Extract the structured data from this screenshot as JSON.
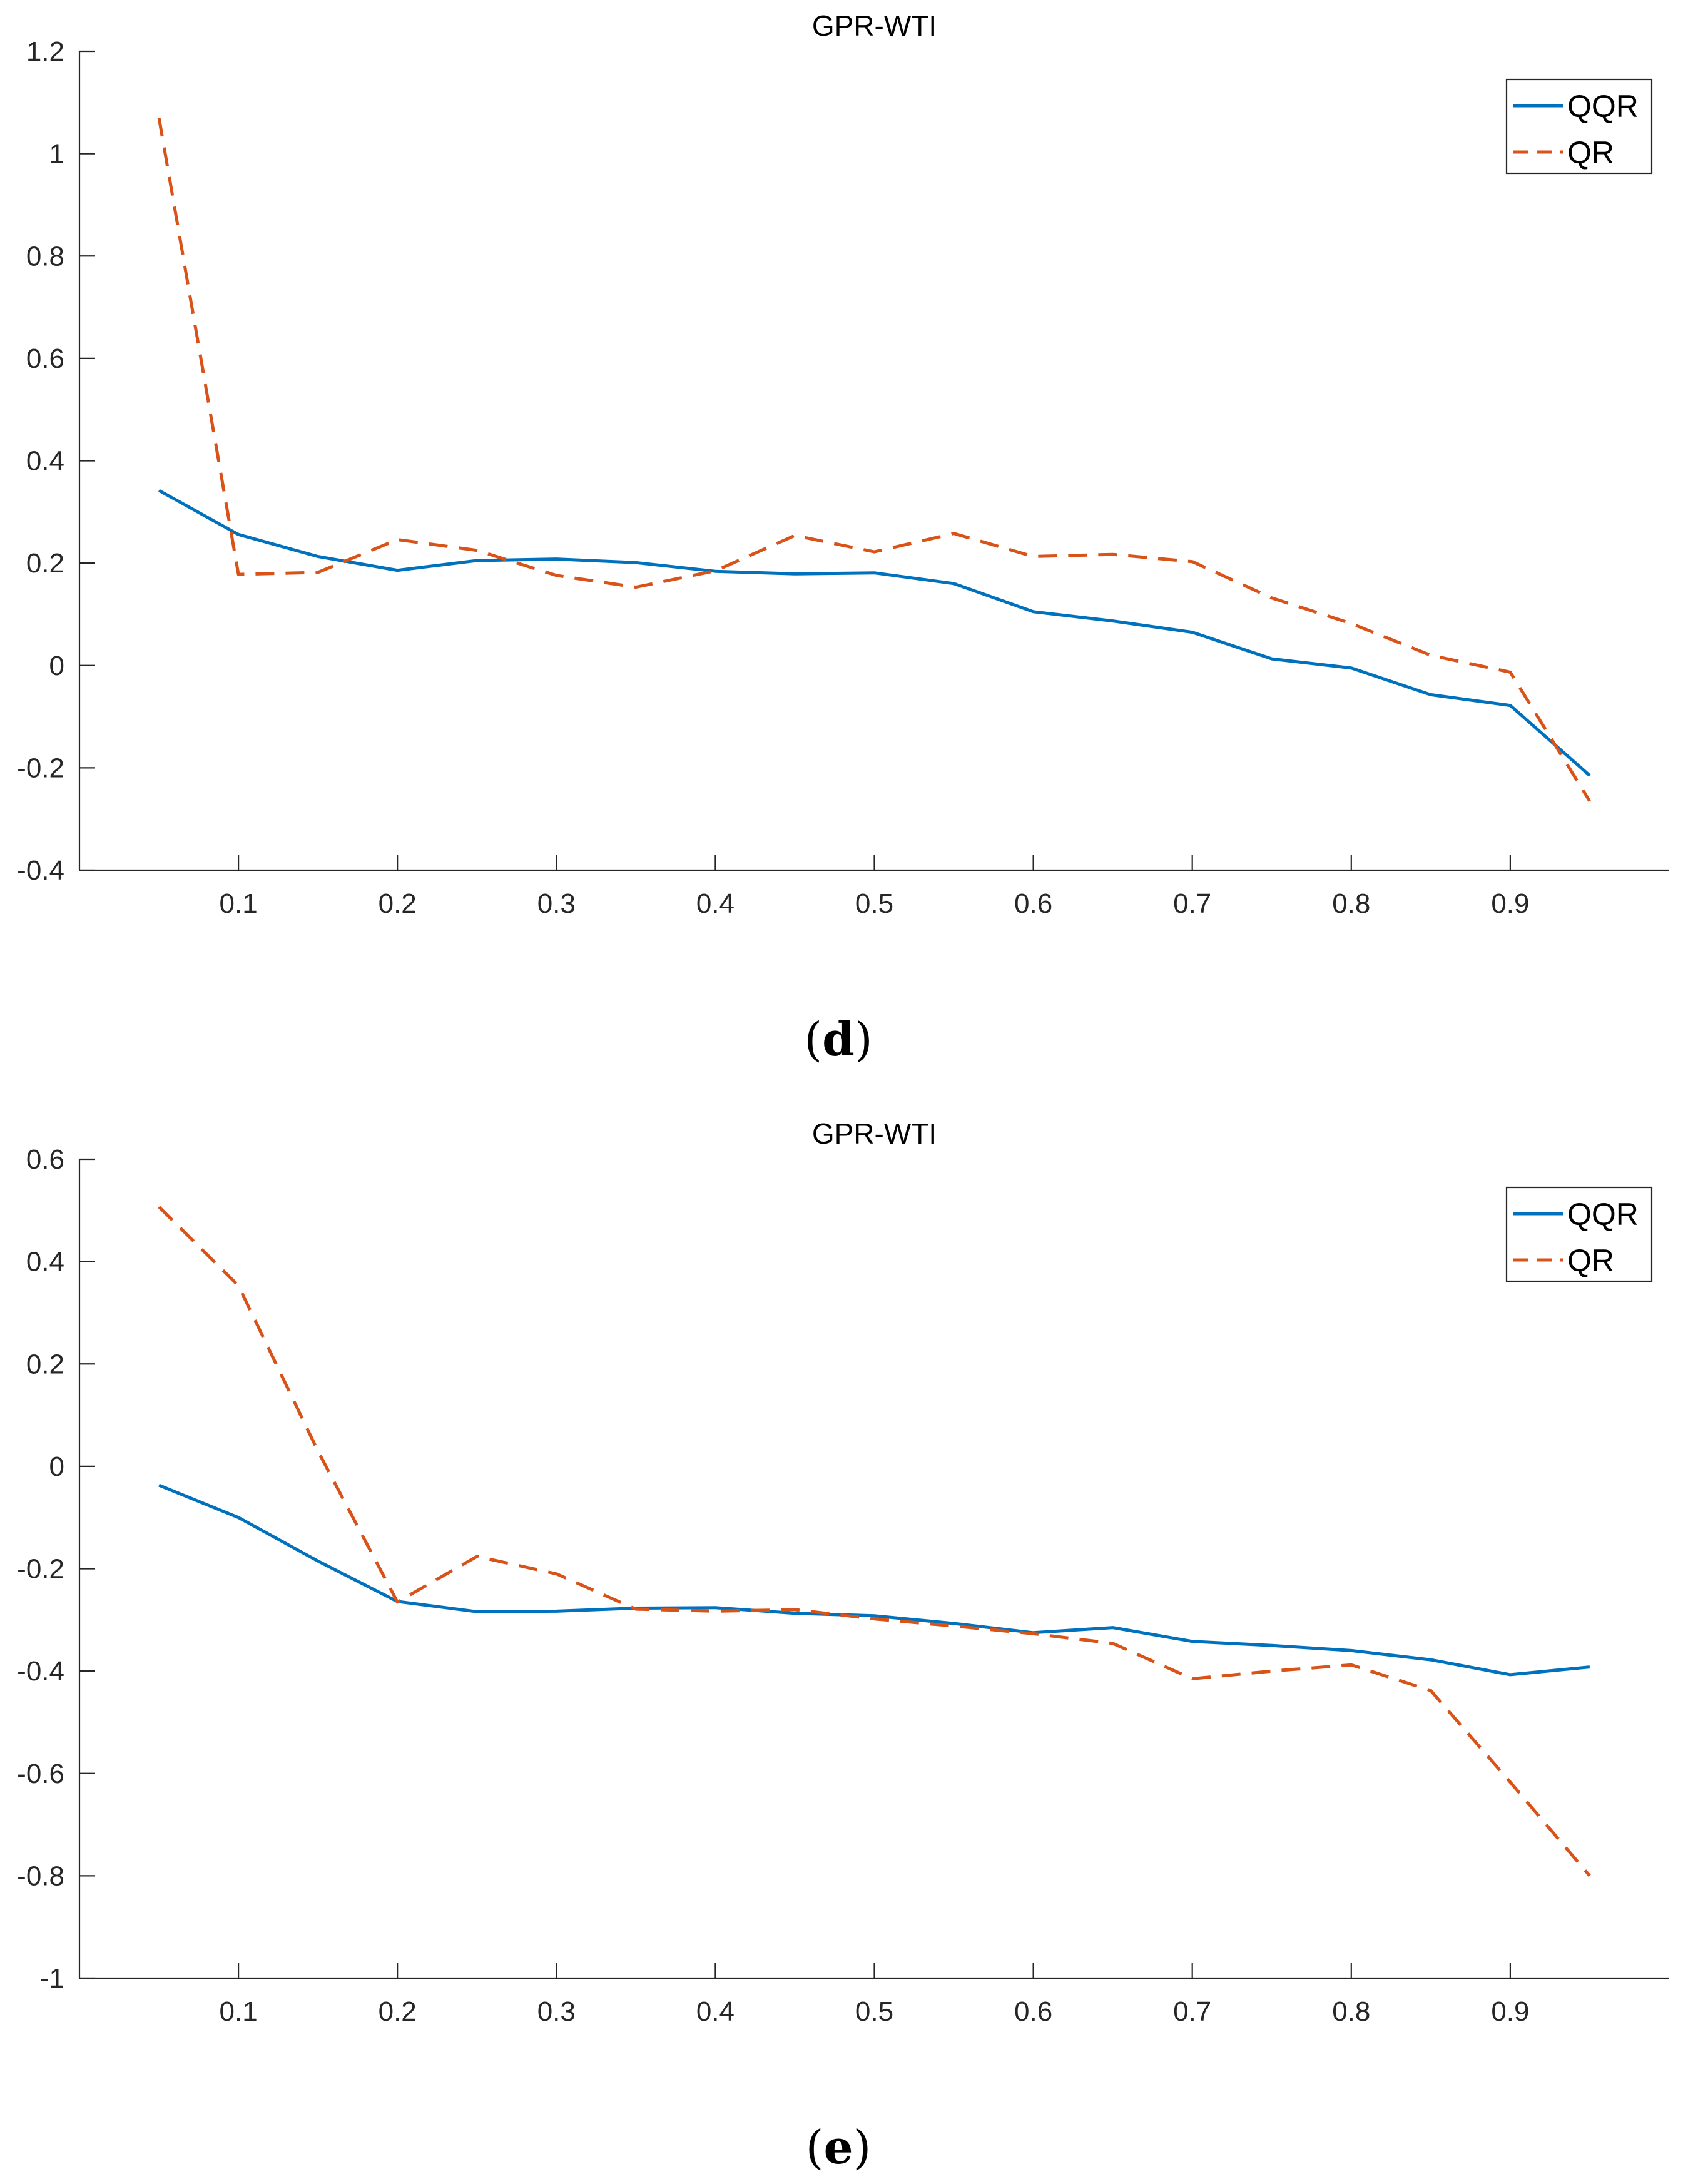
{
  "colors": {
    "qqr": "#0072BD",
    "qr": "#D95319",
    "axis": "#262626"
  },
  "chart_data": [
    {
      "type": "line",
      "title": "GPR-WTI",
      "caption": {
        "open": "(",
        "letter": "d",
        "close": ")"
      },
      "xlabel": "",
      "ylabel": "",
      "xlim": [
        0,
        1
      ],
      "ylim": [
        -0.4,
        1.2
      ],
      "xticks": [
        0.1,
        0.2,
        0.3,
        0.4,
        0.5,
        0.6,
        0.7,
        0.8,
        0.9
      ],
      "xtick_labels": [
        "0.1",
        "0.2",
        "0.3",
        "0.4",
        "0.5",
        "0.6",
        "0.7",
        "0.8",
        "0.9"
      ],
      "yticks": [
        -0.4,
        -0.2,
        0,
        0.2,
        0.4,
        0.6,
        0.8,
        1,
        1.2
      ],
      "ytick_labels": [
        "-0.4",
        "-0.2",
        "0",
        "0.2",
        "0.4",
        "0.6",
        "0.8",
        "1",
        "1.2"
      ],
      "legend_position": "top-right",
      "x": [
        0.05,
        0.1,
        0.15,
        0.2,
        0.25,
        0.3,
        0.35,
        0.4,
        0.45,
        0.5,
        0.55,
        0.6,
        0.65,
        0.7,
        0.75,
        0.8,
        0.85,
        0.9,
        0.95
      ],
      "series": [
        {
          "name": "QQR",
          "style": "solid",
          "values": [
            0.342,
            0.256,
            0.213,
            0.186,
            0.205,
            0.208,
            0.201,
            0.184,
            0.179,
            0.181,
            0.16,
            0.105,
            0.087,
            0.065,
            0.013,
            -0.005,
            -0.057,
            -0.078,
            -0.215
          ]
        },
        {
          "name": "QR",
          "style": "dashed",
          "values": [
            1.07,
            0.178,
            0.182,
            0.246,
            0.225,
            0.176,
            0.153,
            0.185,
            0.254,
            0.222,
            0.258,
            0.213,
            0.217,
            0.203,
            0.132,
            0.082,
            0.02,
            -0.013,
            -0.265
          ]
        }
      ]
    },
    {
      "type": "line",
      "title": "GPR-WTI",
      "caption": {
        "open": "(",
        "letter": "e",
        "close": ")"
      },
      "xlabel": "",
      "ylabel": "",
      "xlim": [
        0,
        1
      ],
      "ylim": [
        -1,
        0.6
      ],
      "xticks": [
        0.1,
        0.2,
        0.3,
        0.4,
        0.5,
        0.6,
        0.7,
        0.8,
        0.9
      ],
      "xtick_labels": [
        "0.1",
        "0.2",
        "0.3",
        "0.4",
        "0.5",
        "0.6",
        "0.7",
        "0.8",
        "0.9"
      ],
      "yticks": [
        -1,
        -0.8,
        -0.6,
        -0.4,
        -0.2,
        0,
        0.2,
        0.4,
        0.6
      ],
      "ytick_labels": [
        "-1",
        "-0.8",
        "-0.6",
        "-0.4",
        "-0.2",
        "0",
        "0.2",
        "0.4",
        "0.6"
      ],
      "legend_position": "top-right",
      "x": [
        0.05,
        0.1,
        0.15,
        0.2,
        0.25,
        0.3,
        0.35,
        0.4,
        0.45,
        0.5,
        0.55,
        0.6,
        0.65,
        0.7,
        0.75,
        0.8,
        0.85,
        0.9,
        0.95
      ],
      "series": [
        {
          "name": "QQR",
          "style": "solid",
          "values": [
            -0.037,
            -0.1,
            -0.185,
            -0.264,
            -0.284,
            -0.283,
            -0.277,
            -0.276,
            -0.287,
            -0.292,
            -0.307,
            -0.325,
            -0.315,
            -0.342,
            -0.35,
            -0.36,
            -0.378,
            -0.407,
            -0.392
          ]
        },
        {
          "name": "QR",
          "style": "dashed",
          "values": [
            0.507,
            0.353,
            0.03,
            -0.265,
            -0.176,
            -0.21,
            -0.279,
            -0.283,
            -0.28,
            -0.298,
            -0.312,
            -0.327,
            -0.346,
            -0.415,
            -0.4,
            -0.388,
            -0.438,
            -0.617,
            -0.8
          ]
        }
      ]
    }
  ]
}
